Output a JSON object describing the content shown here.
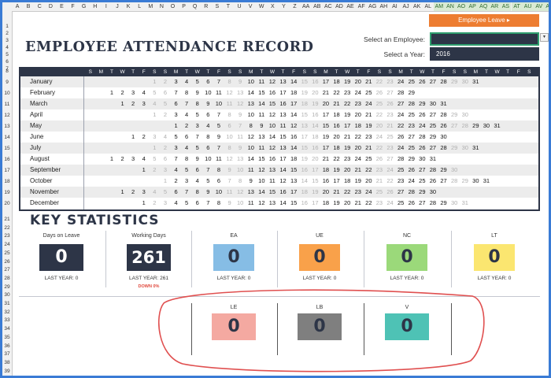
{
  "sheet": {
    "columns": [
      "A",
      "B",
      "C",
      "D",
      "E",
      "F",
      "G",
      "H",
      "I",
      "J",
      "K",
      "L",
      "M",
      "N",
      "O",
      "P",
      "Q",
      "R",
      "S",
      "T",
      "U",
      "V",
      "W",
      "X",
      "Y",
      "Z",
      "AA",
      "AB",
      "AC",
      "AD",
      "AE",
      "AF",
      "AG",
      "AH",
      "AI",
      "AJ",
      "AK",
      "AL",
      "AM",
      "AN",
      "AO",
      "AP",
      "AQ",
      "AR",
      "AS",
      "AT",
      "AU",
      "AV",
      "AW"
    ],
    "highlighted_columns": [
      "AM",
      "AN",
      "AO",
      "AP",
      "AQ",
      "AR",
      "AS",
      "AT",
      "AU",
      "AV",
      "AW"
    ],
    "rows": [
      "1",
      "2",
      "3",
      "4",
      "5",
      "6",
      "7",
      "8",
      "9",
      "10",
      "11",
      "12",
      "13",
      "14",
      "15",
      "16",
      "17",
      "18",
      "19",
      "20",
      "21",
      "22",
      "23",
      "24",
      "25",
      "26",
      "27",
      "28",
      "29",
      "30",
      "31",
      "32",
      "33",
      "34",
      "35",
      "36",
      "37",
      "38",
      "39"
    ]
  },
  "header": {
    "title": "EMPLOYEE ATTENDANCE RECORD",
    "employee_leave_button": "Employee Leave ▸",
    "select_employee_label": "Select an Employee:",
    "select_year_label": "Select a Year:",
    "selected_employee": "",
    "selected_year": "2016",
    "dropdown_arrow": "▼"
  },
  "calendar": {
    "day_headers": [
      "S",
      "M",
      "T",
      "W",
      "T",
      "F",
      "S",
      "S",
      "M",
      "T",
      "W",
      "T",
      "F",
      "S",
      "S",
      "M",
      "T",
      "W",
      "T",
      "F",
      "S",
      "S",
      "M",
      "T",
      "W",
      "T",
      "F",
      "S",
      "S",
      "M",
      "T",
      "W",
      "T",
      "F",
      "S",
      "S",
      "M",
      "T",
      "W",
      "T",
      "F",
      "S"
    ],
    "months": [
      {
        "name": "January",
        "offset": 6,
        "days": 31
      },
      {
        "name": "February",
        "offset": 2,
        "days": 29
      },
      {
        "name": "March",
        "offset": 3,
        "days": 31
      },
      {
        "name": "April",
        "offset": 6,
        "days": 30
      },
      {
        "name": "May",
        "offset": 8,
        "days": 31
      },
      {
        "name": "June",
        "offset": 4,
        "days": 30
      },
      {
        "name": "July",
        "offset": 6,
        "days": 31
      },
      {
        "name": "August",
        "offset": 2,
        "days": 31
      },
      {
        "name": "September",
        "offset": 5,
        "days": 30
      },
      {
        "name": "October",
        "offset": 7,
        "days": 31
      },
      {
        "name": "November",
        "offset": 3,
        "days": 30
      },
      {
        "name": "December",
        "offset": 5,
        "days": 31
      }
    ]
  },
  "stats": {
    "title": "KEY STATISTICS",
    "row1": [
      {
        "label": "Days on Leave",
        "value": "0",
        "sub": "LAST YEAR: 0",
        "note": "",
        "color": "#2d3547",
        "text_color": "#ffffff"
      },
      {
        "label": "Working Days",
        "value": "261",
        "sub": "LAST YEAR: 261",
        "note": "DOWN 0%",
        "color": "#2d3547",
        "text_color": "#ffffff"
      },
      {
        "label": "EA",
        "value": "0",
        "sub": "LAST YEAR: 0",
        "note": "",
        "color": "#86bde5",
        "text_color": "#2d3547"
      },
      {
        "label": "UE",
        "value": "0",
        "sub": "LAST YEAR: 0",
        "note": "",
        "color": "#f9a14a",
        "text_color": "#2d3547"
      },
      {
        "label": "NC",
        "value": "0",
        "sub": "LAST YEAR: 0",
        "note": "",
        "color": "#9bd97a",
        "text_color": "#2d3547"
      },
      {
        "label": "LT",
        "value": "0",
        "sub": "LAST YEAR: 0",
        "note": "",
        "color": "#fbe670",
        "text_color": "#2d3547"
      }
    ],
    "row2": [
      {
        "label": "LE",
        "value": "0",
        "color": "#f4a9a1",
        "text_color": "#2d3547"
      },
      {
        "label": "LB",
        "value": "0",
        "color": "#7f7f7f",
        "text_color": "#2d3547"
      },
      {
        "label": "V",
        "value": "0",
        "color": "#4ec2b5",
        "text_color": "#2d3547"
      }
    ]
  },
  "colors": {
    "navy": "#2d3547",
    "accent_orange": "#ed7d31",
    "annotation_red": "#e05050",
    "selection_green": "#2f9e6e"
  }
}
